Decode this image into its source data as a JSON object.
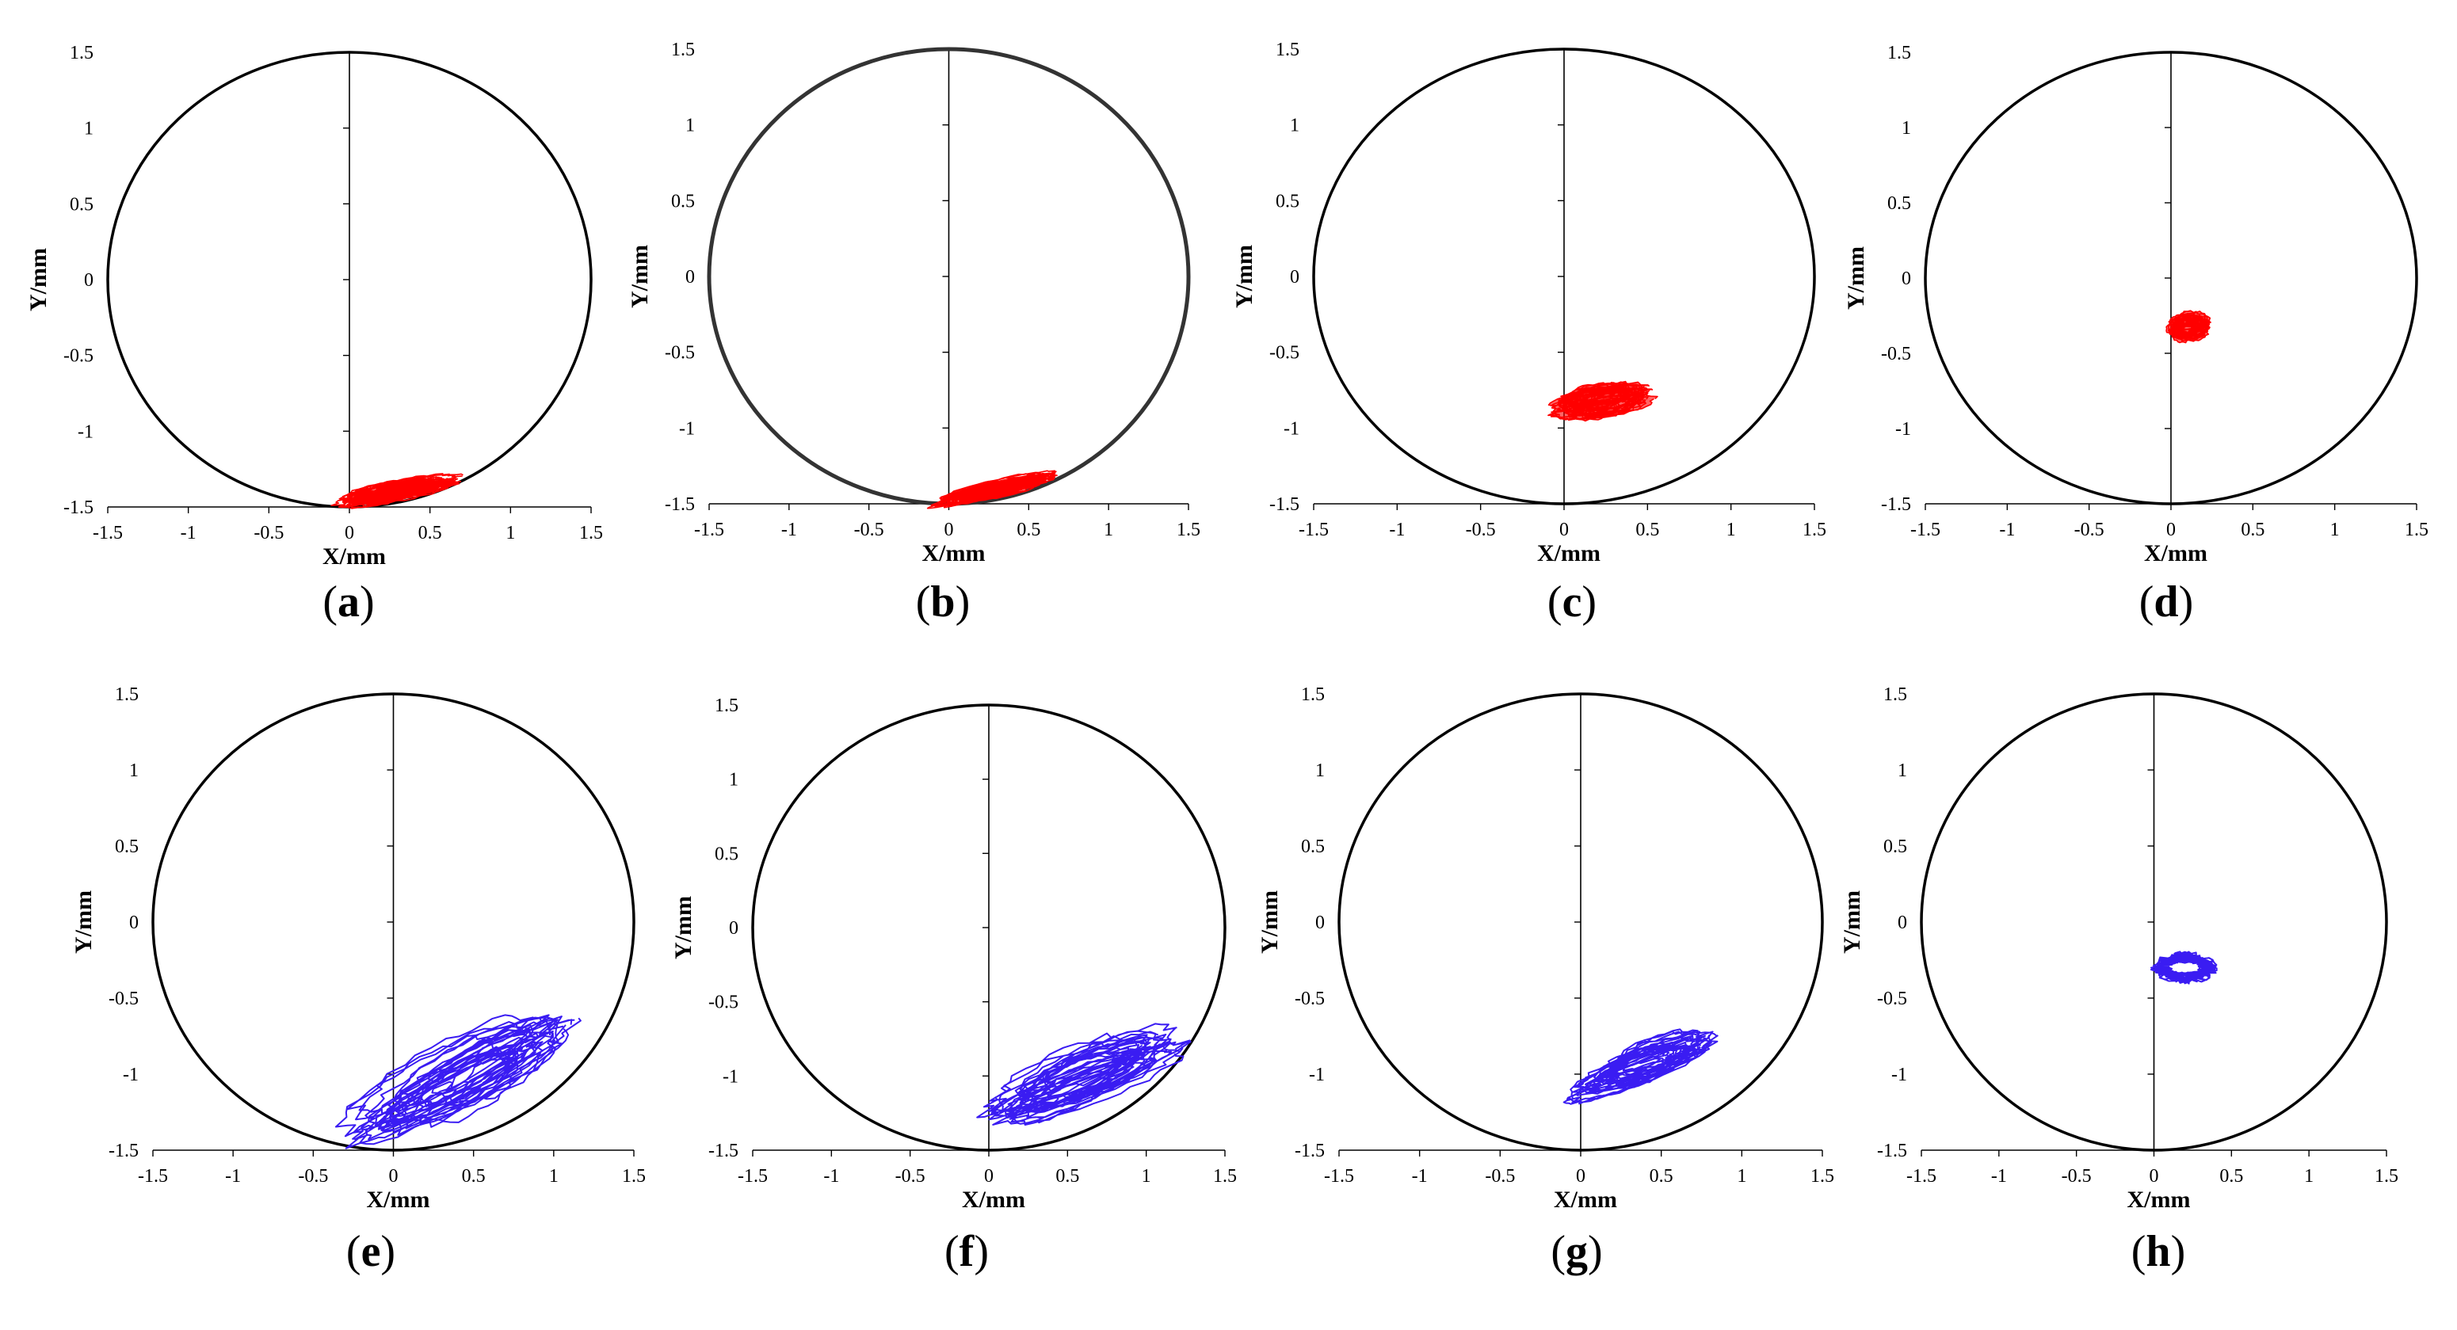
{
  "chart_data": [
    {
      "panel": "a",
      "caption": "(a)",
      "type": "scatter",
      "xlabel": "X/mm",
      "ylabel": "Y/mm",
      "xlim": [
        -1.5,
        1.5
      ],
      "ylim": [
        -1.5,
        1.5
      ],
      "xticks": [
        "-1.5",
        "-1",
        "-0.5",
        "0",
        "0.5",
        "1",
        "1.5"
      ],
      "yticks": [
        "1.5",
        "1",
        "0.5",
        "0",
        "-0.5",
        "-1",
        "-1.5"
      ],
      "boundary_radius": 1.5,
      "orbit_color": "#ff0000",
      "orbit_center": [
        0.28,
        -1.4
      ],
      "orbit_span": [
        0.66,
        0.1
      ],
      "orbit_tilt_deg": 12
    },
    {
      "panel": "b",
      "caption": "(b)",
      "type": "scatter",
      "xlabel": "X/mm",
      "ylabel": "Y/mm",
      "xlim": [
        -1.5,
        1.5
      ],
      "ylim": [
        -1.5,
        1.5
      ],
      "xticks": [
        "-1.5",
        "-1",
        "-0.5",
        "0",
        "0.5",
        "1",
        "1.5"
      ],
      "yticks": [
        "1.5",
        "1",
        "0.5",
        "0",
        "-0.5",
        "-1",
        "-1.5"
      ],
      "boundary_radius": 1.5,
      "orbit_color": "#ff0000",
      "orbit_center": [
        0.3,
        -1.4
      ],
      "orbit_span": [
        0.66,
        0.08
      ],
      "orbit_tilt_deg": 14
    },
    {
      "panel": "c",
      "caption": "(c)",
      "type": "scatter",
      "xlabel": "X/mm",
      "ylabel": "Y/mm",
      "xlim": [
        -1.5,
        1.5
      ],
      "ylim": [
        -1.5,
        1.5
      ],
      "xticks": [
        "-1.5",
        "-1",
        "-0.5",
        "0",
        "0.5",
        "1",
        "1.5"
      ],
      "yticks": [
        "1.5",
        "1",
        "0.5",
        "0",
        "-0.5",
        "-1",
        "-1.5"
      ],
      "boundary_radius": 1.5,
      "orbit_color": "#ff0000",
      "orbit_center": [
        0.22,
        -0.82
      ],
      "orbit_span": [
        0.5,
        0.16
      ],
      "orbit_tilt_deg": 10
    },
    {
      "panel": "d",
      "caption": "(d)",
      "type": "scatter",
      "xlabel": "X/mm",
      "ylabel": "Y/mm",
      "xlim": [
        -1.5,
        1.5
      ],
      "ylim": [
        -1.5,
        1.5
      ],
      "xticks": [
        "-1.5",
        "-1",
        "-0.5",
        "0",
        "0.5",
        "1",
        "1.5"
      ],
      "yticks": [
        "1.5",
        "1",
        "0.5",
        "0",
        "-0.5",
        "-1",
        "-1.5"
      ],
      "boundary_radius": 1.5,
      "orbit_color": "#ff0000",
      "orbit_center": [
        0.1,
        -0.32
      ],
      "orbit_span": [
        0.22,
        0.14
      ],
      "orbit_tilt_deg": 5
    },
    {
      "panel": "e",
      "caption": "(e)",
      "type": "line",
      "xlabel": "X/mm",
      "ylabel": "Y/mm",
      "xlim": [
        -1.5,
        1.5
      ],
      "ylim": [
        -1.5,
        1.5
      ],
      "xticks": [
        "-1.5",
        "-1",
        "-0.5",
        "0",
        "0.5",
        "1",
        "1.5"
      ],
      "yticks": [
        "1.5",
        "1",
        "0.5",
        "0",
        "-0.5",
        "-1",
        "-1.5"
      ],
      "boundary_radius": 1.5,
      "orbit_color": "#3a1cf2",
      "orbit_center": [
        0.45,
        -0.98
      ],
      "orbit_span": [
        1.35,
        0.34
      ],
      "orbit_tilt_deg": 30
    },
    {
      "panel": "f",
      "caption": "(f)",
      "type": "line",
      "xlabel": "X/mm",
      "ylabel": "Y/mm",
      "xlim": [
        -1.5,
        1.5
      ],
      "ylim": [
        -1.5,
        1.5
      ],
      "xticks": [
        "-1.5",
        "-1",
        "-0.5",
        "0",
        "0.5",
        "1",
        "1.5"
      ],
      "yticks": [
        "1.5",
        "1",
        "0.5",
        "0",
        "-0.5",
        "-1",
        "-1.5"
      ],
      "boundary_radius": 1.5,
      "orbit_color": "#3a1cf2",
      "orbit_center": [
        0.6,
        -1.02
      ],
      "orbit_span": [
        1.12,
        0.3
      ],
      "orbit_tilt_deg": 24
    },
    {
      "panel": "g",
      "caption": "(g)",
      "type": "line",
      "xlabel": "X/mm",
      "ylabel": "Y/mm",
      "xlim": [
        -1.5,
        1.5
      ],
      "ylim": [
        -1.5,
        1.5
      ],
      "xticks": [
        "-1.5",
        "-1",
        "-0.5",
        "0",
        "0.5",
        "1",
        "1.5"
      ],
      "yticks": [
        "1.5",
        "1",
        "0.5",
        "0",
        "-0.5",
        "-1",
        "-1.5"
      ],
      "boundary_radius": 1.5,
      "orbit_color": "#3a1cf2",
      "orbit_center": [
        0.38,
        -0.95
      ],
      "orbit_span": [
        0.8,
        0.2
      ],
      "orbit_tilt_deg": 22
    },
    {
      "panel": "h",
      "caption": "(h)",
      "type": "line",
      "xlabel": "X/mm",
      "ylabel": "Y/mm",
      "xlim": [
        -1.5,
        1.5
      ],
      "ylim": [
        -1.5,
        1.5
      ],
      "xticks": [
        "-1.5",
        "-1",
        "-0.5",
        "0",
        "0.5",
        "1",
        "1.5"
      ],
      "yticks": [
        "1.5",
        "1",
        "0.5",
        "0",
        "-0.5",
        "-1",
        "-1.5"
      ],
      "boundary_radius": 1.5,
      "orbit_color": "#3a1cf2",
      "orbit_center": [
        0.2,
        -0.3
      ],
      "orbit_span": [
        0.45,
        0.22
      ],
      "orbit_tilt_deg": 0
    }
  ]
}
